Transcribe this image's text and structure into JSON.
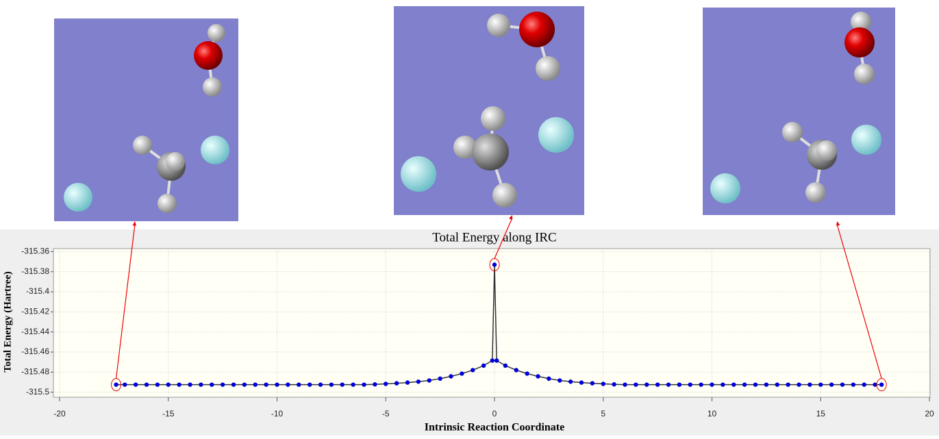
{
  "chart_data": {
    "type": "line",
    "title": "Total Energy along IRC",
    "x_label": "Intrinsic Reaction Coordinate",
    "y_label": "Total Energy (Hartree)",
    "x": [
      -17.4,
      -17,
      -16.5,
      -16,
      -15.5,
      -15,
      -14.5,
      -14,
      -13.5,
      -13,
      -12.5,
      -12,
      -11.5,
      -11,
      -10.5,
      -10,
      -9.5,
      -9,
      -8.5,
      -8,
      -7.5,
      -7,
      -6.5,
      -6,
      -5.5,
      -5,
      -4.5,
      -4,
      -3.5,
      -3,
      -2.5,
      -2,
      -1.5,
      -1,
      -0.5,
      -0.1,
      0,
      0.1,
      0.5,
      1,
      1.5,
      2,
      2.5,
      3,
      3.5,
      4,
      4.5,
      5,
      5.5,
      6,
      6.5,
      7,
      7.5,
      8,
      8.5,
      9,
      9.5,
      10,
      10.5,
      11,
      11.5,
      12,
      12.5,
      13,
      13.5,
      14,
      14.5,
      15,
      15.5,
      16,
      16.5,
      17,
      17.5,
      17.8
    ],
    "series": [
      {
        "name": "Total Energy",
        "color": "#0000dd",
        "line_color": "#333333",
        "values": [
          -315.4925,
          -315.4925,
          -315.4925,
          -315.4925,
          -315.4925,
          -315.4925,
          -315.4925,
          -315.4925,
          -315.4925,
          -315.4925,
          -315.4925,
          -315.4925,
          -315.4925,
          -315.4925,
          -315.4925,
          -315.4925,
          -315.4925,
          -315.4925,
          -315.4925,
          -315.4925,
          -315.4925,
          -315.4925,
          -315.4925,
          -315.4925,
          -315.4922,
          -315.4917,
          -315.4911,
          -315.4904,
          -315.4895,
          -315.4883,
          -315.4865,
          -315.4842,
          -315.4815,
          -315.478,
          -315.4735,
          -315.4685,
          -315.373,
          -315.4685,
          -315.4735,
          -315.478,
          -315.4815,
          -315.4842,
          -315.4865,
          -315.4883,
          -315.4895,
          -315.4904,
          -315.4911,
          -315.4917,
          -315.4922,
          -315.4925,
          -315.4925,
          -315.4925,
          -315.4925,
          -315.4925,
          -315.4925,
          -315.4925,
          -315.4925,
          -315.4925,
          -315.4925,
          -315.4925,
          -315.4925,
          -315.4925,
          -315.4925,
          -315.4925,
          -315.4925,
          -315.4925,
          -315.4925,
          -315.4925,
          -315.4925,
          -315.4925,
          -315.4925,
          -315.4925,
          -315.4925,
          -315.4925
        ]
      }
    ],
    "xlim": [
      -20,
      20
    ],
    "xticks": [
      -20,
      -15,
      -10,
      -5,
      0,
      5,
      10,
      15,
      20
    ],
    "ylim": [
      -315.505,
      -315.357
    ],
    "yticks": [
      -315.36,
      -315.38,
      -315.4,
      -315.42,
      -315.44,
      -315.46,
      -315.48,
      -315.5
    ],
    "grid": true
  }
}
